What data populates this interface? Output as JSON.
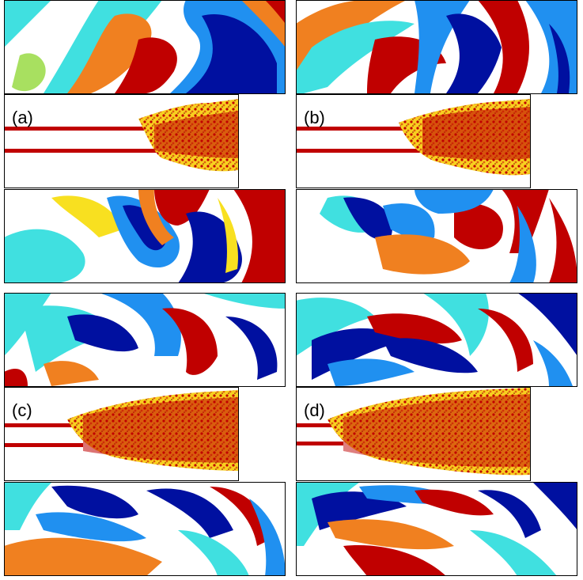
{
  "figure": {
    "panels": [
      {
        "id": "a",
        "label": "(a)"
      },
      {
        "id": "b",
        "label": "(b)"
      },
      {
        "id": "c",
        "label": "(c)"
      },
      {
        "id": "d",
        "label": "(d)"
      }
    ],
    "colormap": {
      "positive": "#c00000",
      "positive_mid": "#f08020",
      "positive_low": "#f8e020",
      "neutral": "#ffffff",
      "negative_low": "#40e0e0",
      "negative_mid": "#2090f0",
      "negative": "#0010a0"
    }
  }
}
